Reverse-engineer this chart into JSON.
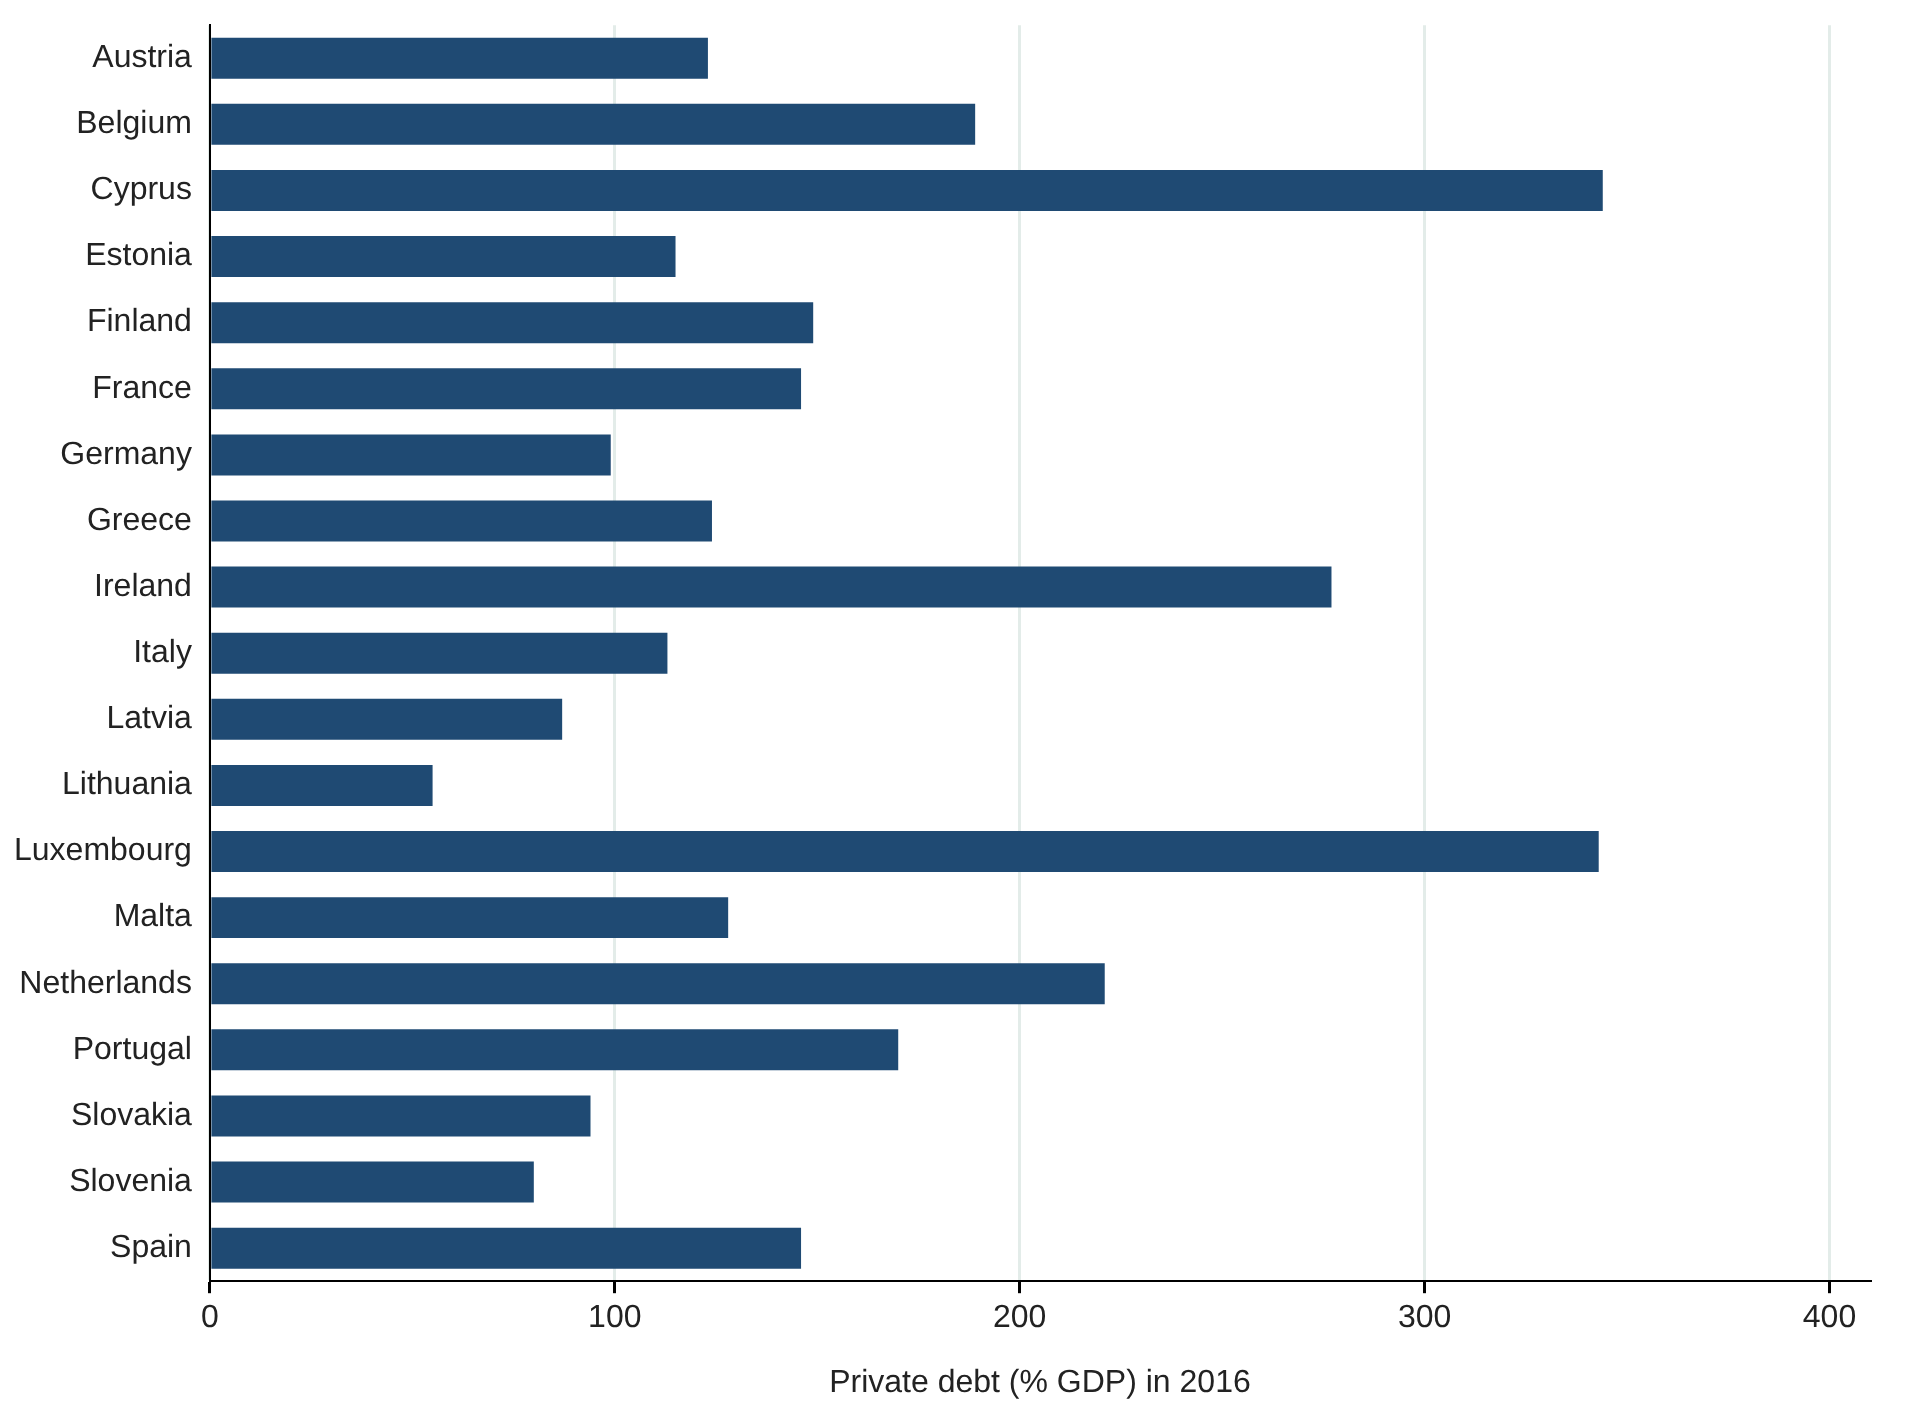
{
  "chart_data": {
    "type": "bar",
    "orientation": "horizontal",
    "xlabel": "Private debt (% GDP) in 2016",
    "categories": [
      "Austria",
      "Belgium",
      "Cyprus",
      "Estonia",
      "Finland",
      "France",
      "Germany",
      "Greece",
      "Ireland",
      "Italy",
      "Latvia",
      "Lithuania",
      "Luxembourg",
      "Malta",
      "Netherlands",
      "Portugal",
      "Slovakia",
      "Slovenia",
      "Spain"
    ],
    "values": [
      123,
      189,
      344,
      115,
      149,
      146,
      99,
      124,
      277,
      113,
      87,
      55,
      343,
      128,
      221,
      170,
      94,
      80,
      146
    ],
    "color": "#1f4a73",
    "xlim": [
      0,
      410
    ],
    "xticks": [
      0,
      100,
      200,
      300,
      400
    ],
    "grid": "x",
    "legend": false
  }
}
